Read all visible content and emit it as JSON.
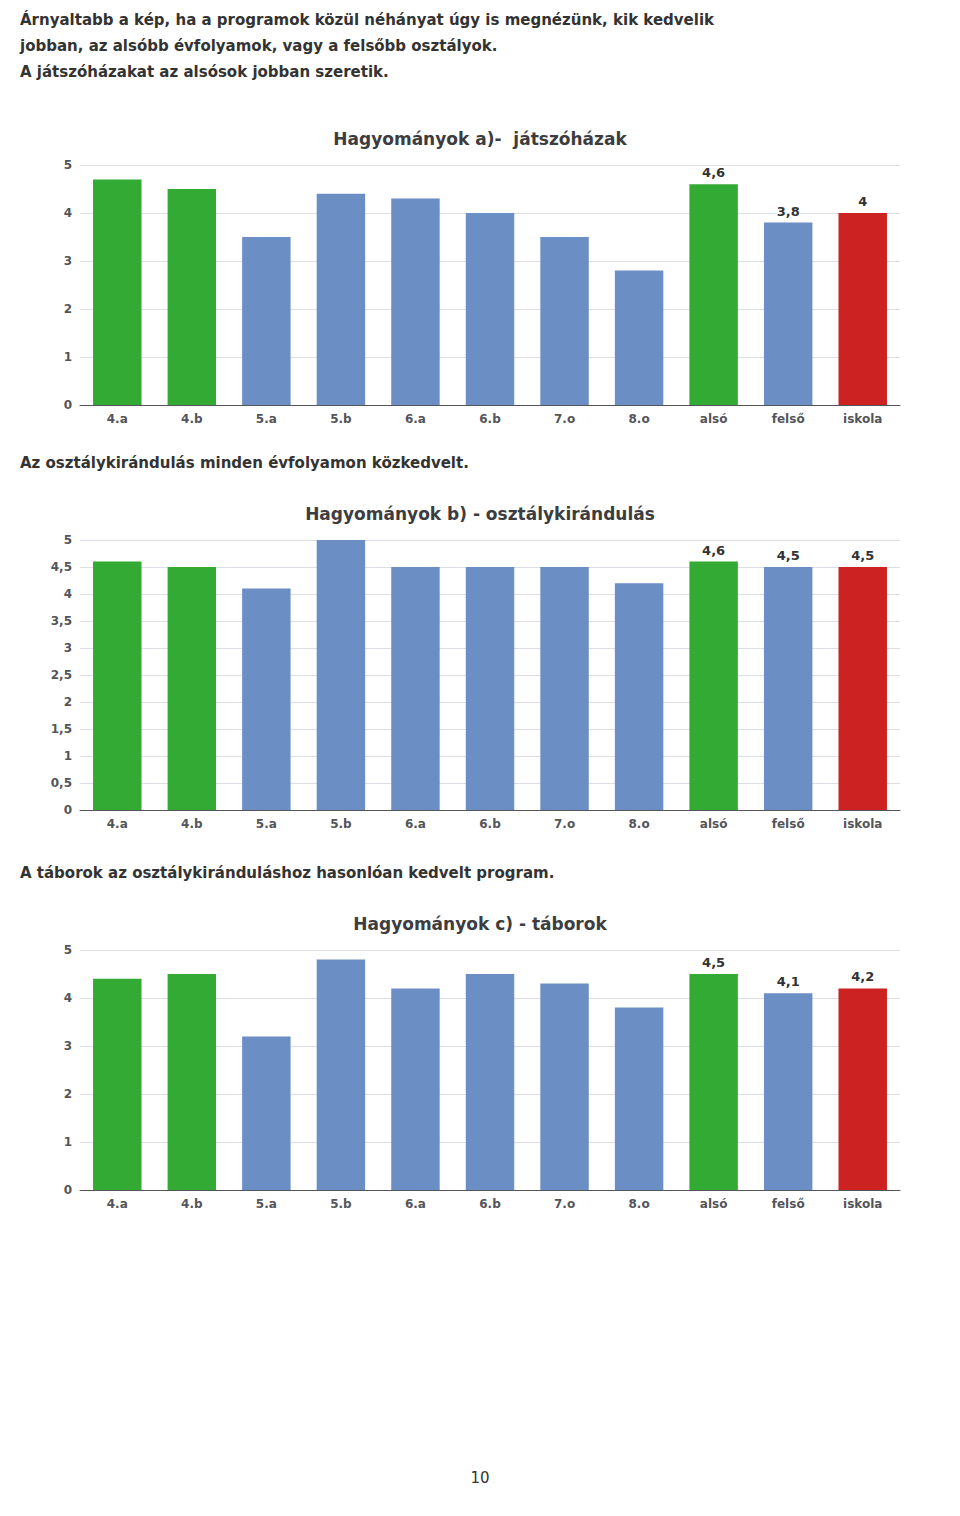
{
  "chart_data": [
    {
      "type": "bar",
      "title": "Hagyományok a)-  játszóházak",
      "annotations": [
        "Árnyaltabb a kép, ha a programok közül néhányat úgy is megnézünk, kik kedvelik",
        "jobban, az alsóbb évfolyamok, vagy a felsőbb osztályok.",
        "A játszóházakat az alsósok jobban szeretik."
      ],
      "categories": [
        "4.a",
        "4.b",
        "5.a",
        "5.b",
        "6.a",
        "6.b",
        "7.o",
        "8.o",
        "alsó",
        "felső",
        "iskola"
      ],
      "values": [
        4.7,
        4.5,
        3.5,
        4.4,
        4.3,
        4.0,
        3.5,
        2.8,
        4.6,
        3.8,
        4.0
      ],
      "value_labels": [
        null,
        null,
        null,
        null,
        null,
        null,
        null,
        null,
        "4,6",
        "3,8",
        "4"
      ],
      "colors": [
        "#33AA33",
        "#33AA33",
        "#6B8EC4",
        "#6B8EC4",
        "#6B8EC4",
        "#6B8EC4",
        "#6B8EC4",
        "#6B8EC4",
        "#33AA33",
        "#6B8EC4",
        "#CC2222"
      ],
      "ylim": [
        0,
        5
      ],
      "yticks": [
        0,
        1,
        2,
        3,
        4,
        5
      ],
      "grid": true
    },
    {
      "type": "bar",
      "title": "Hagyományok b) - osztálykirándulás",
      "annotations": [
        "Az osztálykirándulás minden évfolyamon közkedvelt."
      ],
      "categories": [
        "4.a",
        "4.b",
        "5.a",
        "5.b",
        "6.a",
        "6.b",
        "7.o",
        "8.o",
        "alsó",
        "felső",
        "iskola"
      ],
      "values": [
        4.6,
        4.5,
        4.1,
        5.0,
        4.5,
        4.5,
        4.5,
        4.2,
        4.6,
        4.5,
        4.5
      ],
      "value_labels": [
        null,
        null,
        null,
        null,
        null,
        null,
        null,
        null,
        "4,6",
        "4,5",
        "4,5"
      ],
      "colors": [
        "#33AA33",
        "#33AA33",
        "#6B8EC4",
        "#6B8EC4",
        "#6B8EC4",
        "#6B8EC4",
        "#6B8EC4",
        "#6B8EC4",
        "#33AA33",
        "#6B8EC4",
        "#CC2222"
      ],
      "ylim": [
        0,
        5
      ],
      "yticks": [
        0,
        {
          "value": 0.5,
          "label": "0,5"
        },
        1,
        {
          "value": 1.5,
          "label": "1,5"
        },
        2,
        {
          "value": 2.5,
          "label": "2,5"
        },
        3,
        {
          "value": 3.5,
          "label": "3,5"
        },
        4,
        {
          "value": 4.5,
          "label": "4,5"
        },
        5
      ],
      "grid": true
    },
    {
      "type": "bar",
      "title": "Hagyományok c) - táborok",
      "annotations": [
        "A táborok az osztálykiránduláshoz hasonlóan kedvelt program."
      ],
      "categories": [
        "4.a",
        "4.b",
        "5.a",
        "5.b",
        "6.a",
        "6.b",
        "7.o",
        "8.o",
        "alsó",
        "felső",
        "iskola"
      ],
      "values": [
        4.4,
        4.5,
        3.2,
        4.8,
        4.2,
        4.5,
        4.3,
        3.8,
        4.5,
        4.1,
        4.2
      ],
      "value_labels": [
        null,
        null,
        null,
        null,
        null,
        null,
        null,
        null,
        "4,5",
        "4,1",
        "4,2"
      ],
      "colors": [
        "#33AA33",
        "#33AA33",
        "#6B8EC4",
        "#6B8EC4",
        "#6B8EC4",
        "#6B8EC4",
        "#6B8EC4",
        "#6B8EC4",
        "#33AA33",
        "#6B8EC4",
        "#CC2222"
      ],
      "ylim": [
        0,
        5
      ],
      "yticks": [
        0,
        1,
        2,
        3,
        4,
        5
      ],
      "grid": true
    }
  ],
  "page_number": "10"
}
